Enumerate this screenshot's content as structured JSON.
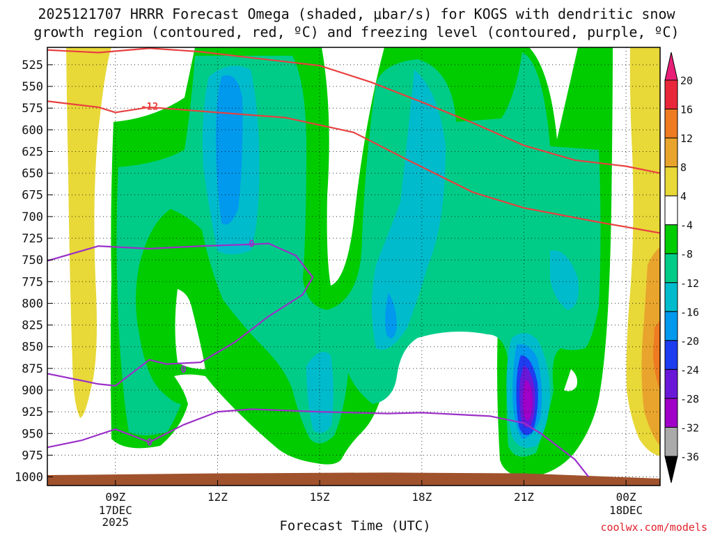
{
  "header": {
    "title_line1": "2025121707 HRRR Forecast Omega (shaded, μbar/s) for KOGS with dendritic snow",
    "title_line2": "growth region (contoured, red, ºC) and freezing level (contoured, purple, ºC)"
  },
  "footer": {
    "xlabel": "Forecast Time (UTC)",
    "credit": "coolwx.com/models"
  },
  "chart_data": {
    "type": "contour",
    "title": "2025121707 HRRR Forecast Omega (shaded, μbar/s) for KOGS with dendritic snow growth region (contoured, red, ºC) and freezing level (contoured, purple, ºC)",
    "xlabel": "Forecast Time (UTC)",
    "ylabel": "",
    "x_unit": "forecast hour from 2025-12-17 07Z",
    "xlim": [
      0,
      18
    ],
    "ylim": [
      1010,
      505
    ],
    "y_ticks": [
      525,
      550,
      575,
      600,
      625,
      650,
      675,
      700,
      725,
      750,
      775,
      800,
      825,
      850,
      875,
      900,
      925,
      950,
      975,
      1000
    ],
    "x_ticks": [
      {
        "x": 2,
        "label": "09Z",
        "sub1": "17DEC",
        "sub2": "2025"
      },
      {
        "x": 5,
        "label": "12Z",
        "sub1": "",
        "sub2": ""
      },
      {
        "x": 8,
        "label": "15Z",
        "sub1": "",
        "sub2": ""
      },
      {
        "x": 11,
        "label": "18Z",
        "sub1": "",
        "sub2": ""
      },
      {
        "x": 14,
        "label": "21Z",
        "sub1": "",
        "sub2": ""
      },
      {
        "x": 17,
        "label": "00Z",
        "sub1": "18DEC",
        "sub2": ""
      }
    ],
    "grid": true,
    "colorbar": {
      "labels": [
        "20",
        "16",
        "12",
        "8",
        "4",
        "-4",
        "-8",
        "-12",
        "-16",
        "-20",
        "-24",
        "-28",
        "-32",
        "-36"
      ],
      "bins": [
        {
          "lo": 16,
          "hi": 20,
          "color": "#e8283a"
        },
        {
          "lo": 12,
          "hi": 16,
          "color": "#ee7a22"
        },
        {
          "lo": 8,
          "hi": 12,
          "color": "#e8a42c"
        },
        {
          "lo": 4,
          "hi": 8,
          "color": "#e8d838"
        },
        {
          "lo": -4,
          "hi": 4,
          "color": "#ffffff"
        },
        {
          "lo": -8,
          "hi": -4,
          "color": "#00cc00"
        },
        {
          "lo": -12,
          "hi": -8,
          "color": "#00cc88"
        },
        {
          "lo": -16,
          "hi": -12,
          "color": "#00bbcc"
        },
        {
          "lo": -20,
          "hi": -16,
          "color": "#0099ee"
        },
        {
          "lo": -24,
          "hi": -20,
          "color": "#1e3cf0"
        },
        {
          "lo": -28,
          "hi": -24,
          "color": "#6a18d8"
        },
        {
          "lo": -32,
          "hi": -28,
          "color": "#a000c8"
        },
        {
          "lo": -36,
          "hi": -32,
          "color": "#aaaaaa"
        }
      ],
      "top_arrow_color": "#e81e78",
      "bottom_arrow_color": "#000000"
    },
    "terrain_color": "#a0522d",
    "terrain_top": [
      {
        "x": 0,
        "p": 998
      },
      {
        "x": 5,
        "p": 996
      },
      {
        "x": 10,
        "p": 995
      },
      {
        "x": 14,
        "p": 996
      },
      {
        "x": 16,
        "p": 999
      },
      {
        "x": 18,
        "p": 1002
      }
    ],
    "series": [
      {
        "name": "dendritic growth region",
        "color": "#e84040",
        "label": "-12",
        "label_at": {
          "x": 3,
          "p": 573
        },
        "lines": [
          [
            [
              0,
              508
            ],
            [
              1.5,
              511
            ],
            [
              3,
              506
            ],
            [
              4.5,
              510
            ],
            [
              6,
              517
            ],
            [
              8,
              526
            ],
            [
              9.5,
              545
            ],
            [
              11,
              568
            ],
            [
              12.5,
              592
            ],
            [
              14,
              618
            ],
            [
              15.5,
              635
            ],
            [
              17,
              642
            ],
            [
              18,
              650
            ]
          ],
          [
            [
              0,
              567
            ],
            [
              1.5,
              574
            ],
            [
              2,
              580
            ],
            [
              3,
              574
            ],
            [
              5,
              580
            ],
            [
              7,
              586
            ],
            [
              9,
              603
            ],
            [
              10.5,
              633
            ],
            [
              12.5,
              672
            ],
            [
              14,
              690
            ],
            [
              16,
              705
            ],
            [
              18,
              719
            ]
          ]
        ]
      },
      {
        "name": "freezing level",
        "color": "#9b30c8",
        "label": "0",
        "label_at": [
          {
            "x": 6,
            "p": 731
          },
          {
            "x": 4,
            "p": 876
          },
          {
            "x": 3,
            "p": 960
          }
        ],
        "lines": [
          [
            [
              0,
              751
            ],
            [
              1.5,
              734
            ],
            [
              3,
              737
            ],
            [
              4.5,
              734
            ],
            [
              6,
              732
            ],
            [
              6.5,
              731
            ],
            [
              7.3,
              745
            ],
            [
              7.8,
              770
            ],
            [
              7.5,
              790
            ],
            [
              6.5,
              815
            ],
            [
              5.5,
              845
            ],
            [
              4.5,
              868
            ],
            [
              3.5,
              870
            ],
            [
              3,
              865
            ],
            [
              2.5,
              880
            ],
            [
              2,
              895
            ],
            [
              1.5,
              893
            ],
            [
              0,
              881
            ]
          ],
          [
            [
              0,
              966
            ],
            [
              1,
              958
            ],
            [
              2,
              945
            ],
            [
              3,
              960
            ],
            [
              4,
              940
            ],
            [
              5,
              925
            ],
            [
              6,
              922
            ],
            [
              8,
              925
            ],
            [
              10,
              927
            ],
            [
              11,
              926
            ],
            [
              12,
              928
            ],
            [
              13,
              930
            ],
            [
              14,
              938
            ],
            [
              14.5,
              950
            ],
            [
              15,
              965
            ],
            [
              15.5,
              980
            ],
            [
              15.9,
              1000
            ]
          ]
        ]
      }
    ]
  }
}
